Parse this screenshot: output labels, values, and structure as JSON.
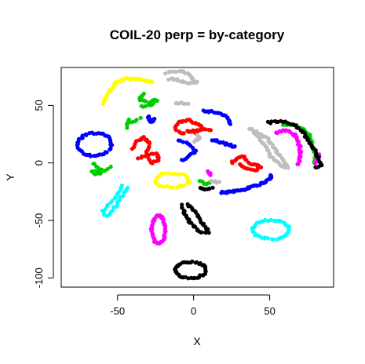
{
  "chart_data": {
    "type": "scatter",
    "title": "COIL-20 perp = by-category",
    "xlabel": "X",
    "ylabel": "Y",
    "xlim": [
      -87,
      92
    ],
    "ylim": [
      -108,
      83
    ],
    "xticks": [
      -50,
      0,
      50
    ],
    "yticks": [
      -100,
      -50,
      0,
      50
    ],
    "xtick_labels": [
      "-50",
      "0",
      "50"
    ],
    "ytick_labels": [
      "-100",
      "-50",
      "0",
      "50"
    ],
    "grid": false,
    "legend": "none",
    "marker": "filled-circle",
    "series": [
      {
        "color": "#FFFF00",
        "clusters": [
          {
            "shape": "curve",
            "n": 40,
            "pts": [
              [
                -59,
                52
              ],
              [
                -58,
                57
              ],
              [
                -55,
                63
              ],
              [
                -51,
                70
              ],
              [
                -45,
                73
              ],
              [
                -37,
                73
              ],
              [
                -30,
                71
              ],
              [
                -27,
                70
              ]
            ]
          },
          {
            "shape": "ring",
            "n": 34,
            "cx": -14,
            "cy": -15,
            "rx": 11,
            "ry": 6
          }
        ]
      },
      {
        "color": "#00CD00",
        "clusters": [
          {
            "shape": "curve",
            "n": 24,
            "pts": [
              [
                -33,
                60
              ],
              [
                -36,
                55
              ],
              [
                -30,
                53
              ],
              [
                -24,
                55
              ],
              [
                -28,
                50
              ],
              [
                -34,
                49
              ]
            ]
          },
          {
            "shape": "curve",
            "n": 10,
            "pts": [
              [
                -35,
                39
              ],
              [
                -44,
                34
              ],
              [
                -44,
                31
              ],
              [
                -42,
                37
              ]
            ]
          },
          {
            "shape": "curve",
            "n": 16,
            "pts": [
              [
                -66,
                0
              ],
              [
                -61,
                -6
              ],
              [
                -67,
                -8
              ],
              [
                -62,
                -10
              ],
              [
                -55,
                -4
              ]
            ]
          },
          {
            "shape": "curve",
            "n": 8,
            "pts": [
              [
                4,
                -16
              ],
              [
                8,
                -18
              ],
              [
                11,
                -16
              ]
            ]
          },
          {
            "shape": "curve",
            "n": 40,
            "pts": [
              [
                59,
                33
              ],
              [
                65,
                34
              ],
              [
                71,
                30
              ],
              [
                76,
                24
              ],
              [
                78,
                15
              ],
              [
                80,
                6
              ],
              [
                79,
                0
              ]
            ]
          }
        ]
      },
      {
        "color": "#0000FF",
        "clusters": [
          {
            "shape": "ring",
            "n": 46,
            "cx": -65,
            "cy": 16,
            "rx": 11,
            "ry": 10
          },
          {
            "shape": "curve",
            "n": 14,
            "pts": [
              [
                -30,
                40
              ],
              [
                -28,
                36
              ],
              [
                -26,
                38
              ]
            ]
          },
          {
            "shape": "curve",
            "n": 20,
            "pts": [
              [
                6,
                45
              ],
              [
                16,
                44
              ],
              [
                22,
                40
              ],
              [
                24,
                34
              ]
            ]
          },
          {
            "shape": "curve",
            "n": 18,
            "pts": [
              [
                -10,
                19
              ],
              [
                -5,
                18
              ],
              [
                2,
                10
              ],
              [
                -8,
                2
              ]
            ]
          },
          {
            "shape": "curve",
            "n": 18,
            "pts": [
              [
                12,
                20
              ],
              [
                20,
                17
              ],
              [
                27,
                14
              ]
            ]
          },
          {
            "shape": "curve",
            "n": 44,
            "pts": [
              [
                18,
                -26
              ],
              [
                30,
                -24
              ],
              [
                38,
                -21
              ],
              [
                45,
                -18
              ],
              [
                50,
                -14
              ],
              [
                51,
                -10
              ]
            ]
          }
        ]
      },
      {
        "color": "#FF0000",
        "clusters": [
          {
            "shape": "curve",
            "n": 44,
            "pts": [
              [
                -40,
                12
              ],
              [
                -38,
                18
              ],
              [
                -33,
                22
              ],
              [
                -29,
                18
              ],
              [
                -31,
                9
              ],
              [
                -28,
                0
              ],
              [
                -23,
                2
              ],
              [
                -24,
                9
              ],
              [
                -32,
                6
              ],
              [
                -36,
                4
              ]
            ]
          },
          {
            "shape": "curve",
            "n": 44,
            "pts": [
              [
                -7,
                25
              ],
              [
                -12,
                30
              ],
              [
                -9,
                36
              ],
              [
                -2,
                37
              ],
              [
                6,
                31
              ],
              [
                1,
                26
              ],
              [
                -4,
                27
              ],
              [
                4,
                29
              ],
              [
                11,
                29
              ]
            ]
          },
          {
            "shape": "curve",
            "n": 32,
            "pts": [
              [
                25,
                0
              ],
              [
                28,
                4
              ],
              [
                33,
                6
              ],
              [
                36,
                0
              ],
              [
                41,
                -2
              ],
              [
                45,
                -4
              ],
              [
                40,
                -6
              ],
              [
                35,
                -5
              ],
              [
                30,
                -2
              ]
            ]
          }
        ]
      },
      {
        "color": "#BEBEBE",
        "clusters": [
          {
            "shape": "curve",
            "n": 36,
            "pts": [
              [
                -18,
                78
              ],
              [
                -12,
                80
              ],
              [
                -6,
                79
              ],
              [
                -2,
                75
              ],
              [
                2,
                70
              ],
              [
                -4,
                69
              ],
              [
                -10,
                72
              ],
              [
                -16,
                73
              ]
            ]
          },
          {
            "shape": "curve",
            "n": 8,
            "pts": [
              [
                -12,
                52
              ],
              [
                -8,
                52
              ],
              [
                -4,
                52
              ]
            ]
          },
          {
            "shape": "curve",
            "n": 8,
            "pts": [
              [
                2,
                24
              ],
              [
                4,
                22
              ],
              [
                1,
                19
              ]
            ]
          },
          {
            "shape": "curve",
            "n": 6,
            "pts": [
              [
                12,
                -16
              ],
              [
                17,
                -17
              ]
            ]
          },
          {
            "shape": "curve",
            "n": 60,
            "pts": [
              [
                42,
                27
              ],
              [
                48,
                22
              ],
              [
                53,
                13
              ],
              [
                59,
                2
              ],
              [
                62,
                -4
              ],
              [
                57,
                -2
              ],
              [
                51,
                5
              ],
              [
                46,
                16
              ],
              [
                41,
                25
              ],
              [
                37,
                30
              ]
            ]
          }
        ]
      },
      {
        "color": "#FF00FF",
        "clusters": [
          {
            "shape": "ring",
            "n": 56,
            "cx": -23,
            "cy": -58,
            "rx": 4.5,
            "ry": 12
          },
          {
            "shape": "curve",
            "n": 6,
            "pts": [
              [
                9,
                -8
              ],
              [
                11,
                -10
              ]
            ]
          },
          {
            "shape": "curve",
            "n": 34,
            "pts": [
              [
                54,
                26
              ],
              [
                61,
                29
              ],
              [
                67,
                24
              ],
              [
                70,
                14
              ],
              [
                70,
                4
              ],
              [
                68,
                -2
              ]
            ]
          },
          {
            "shape": "curve",
            "n": 6,
            "pts": [
              [
                80,
                0
              ],
              [
                83,
                8
              ]
            ]
          }
        ]
      },
      {
        "color": "#00FFFF",
        "clusters": [
          {
            "shape": "curve",
            "n": 30,
            "pts": [
              [
                -47,
                -20
              ],
              [
                -50,
                -28
              ],
              [
                -56,
                -36
              ],
              [
                -60,
                -42
              ],
              [
                -58,
                -46
              ],
              [
                -53,
                -42
              ],
              [
                -50,
                -34
              ],
              [
                -46,
                -26
              ],
              [
                -43,
                -21
              ]
            ]
          },
          {
            "shape": "ring",
            "n": 44,
            "cx": 51,
            "cy": -58,
            "rx": 12,
            "ry": 8
          }
        ]
      },
      {
        "color": "#000000",
        "clusters": [
          {
            "shape": "curve",
            "n": 46,
            "pts": [
              [
                -8,
                -37
              ],
              [
                -6,
                -44
              ],
              [
                -2,
                -52
              ],
              [
                4,
                -60
              ],
              [
                10,
                -60
              ],
              [
                6,
                -53
              ],
              [
                2,
                -44
              ],
              [
                -4,
                -36
              ]
            ]
          },
          {
            "shape": "ring",
            "n": 44,
            "cx": -2,
            "cy": -93,
            "rx": 10,
            "ry": 7
          },
          {
            "shape": "curve",
            "n": 8,
            "pts": [
              [
                4,
                -22
              ],
              [
                8,
                -23
              ],
              [
                12,
                -22
              ]
            ]
          },
          {
            "shape": "curve",
            "n": 46,
            "pts": [
              [
                49,
                35
              ],
              [
                58,
                36
              ],
              [
                67,
                33
              ],
              [
                72,
                27
              ],
              [
                76,
                18
              ],
              [
                80,
                10
              ],
              [
                84,
                -2
              ],
              [
                80,
                -4
              ]
            ]
          }
        ]
      }
    ]
  }
}
